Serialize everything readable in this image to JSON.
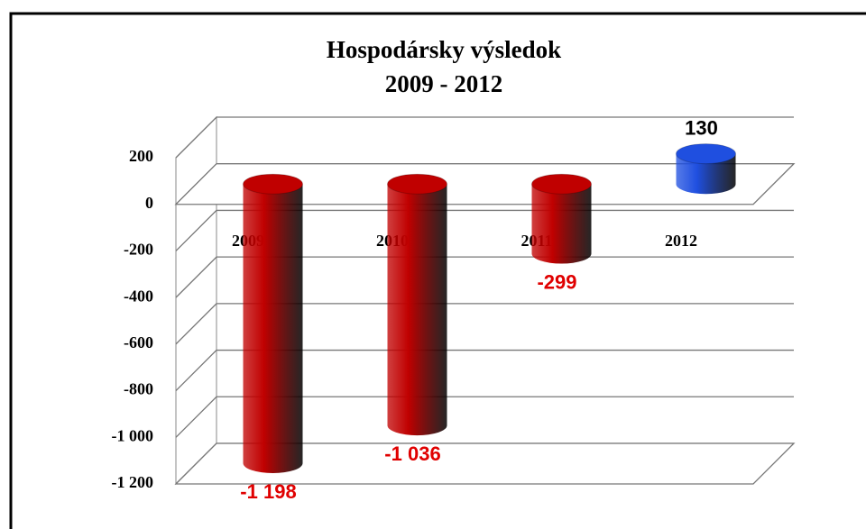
{
  "chart_data": {
    "type": "bar3d",
    "title": "Hospodársky výsledok",
    "subtitle": "2009 - 2012",
    "categories": [
      "2009",
      "2010",
      "2011",
      "2012"
    ],
    "values": [
      -1198,
      -1036,
      -299,
      130
    ],
    "value_labels": [
      "-1 198",
      "-1 036",
      "-299",
      "130"
    ],
    "colors": [
      "#c00000",
      "#c00000",
      "#c00000",
      "#1f4fe0"
    ],
    "label_colors": [
      "#e00000",
      "#e00000",
      "#e00000",
      "#000000"
    ],
    "ylim": [
      -1200,
      200
    ],
    "yticks": [
      200,
      0,
      -200,
      -400,
      -600,
      -800,
      {
        "value": -1000,
        "label": "-1 000"
      },
      {
        "value": -1200,
        "label": "-1 200"
      }
    ],
    "grid": true
  }
}
